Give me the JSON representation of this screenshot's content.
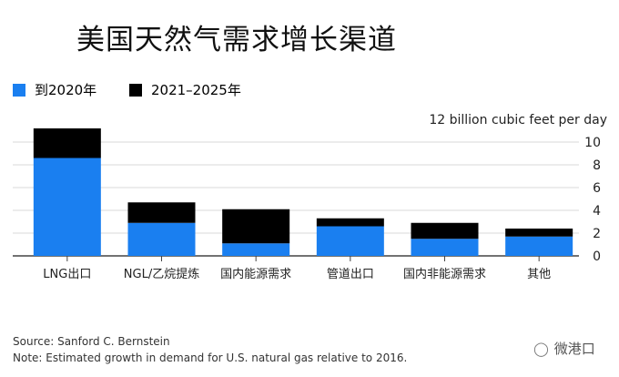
{
  "title": "美国天然气需求增长渠道",
  "legend": [
    {
      "label": "到2020年",
      "color": "#1a7ff0"
    },
    {
      "label": "2021–2025年",
      "color": "#000000"
    }
  ],
  "unit_label": "12 billion cubic feet per day",
  "chart_data": {
    "type": "bar",
    "stacked": true,
    "categories": [
      "LNG出口",
      "NGL/乙烷提炼",
      "国内能源需求",
      "管道出口",
      "国内非能源需求",
      "其他"
    ],
    "series": [
      {
        "name": "到2020年",
        "color": "#1a7ff0",
        "values": [
          8.6,
          2.9,
          1.1,
          2.6,
          1.5,
          1.7
        ]
      },
      {
        "name": "2021–2025年",
        "color": "#000000",
        "values": [
          2.6,
          1.8,
          3.0,
          0.7,
          1.4,
          0.7
        ]
      }
    ],
    "ylim": [
      0,
      12
    ],
    "yticks": [
      0,
      2,
      4,
      6,
      8,
      10
    ],
    "grid": true,
    "legend_position": "top-left"
  },
  "footer": {
    "source": "Source: Sanford C. Bernstein",
    "note": "Note: Estimated growth in demand for U.S. natural gas relative to 2016."
  },
  "watermark": {
    "text": "微港口",
    "icon": "wechat-icon"
  }
}
